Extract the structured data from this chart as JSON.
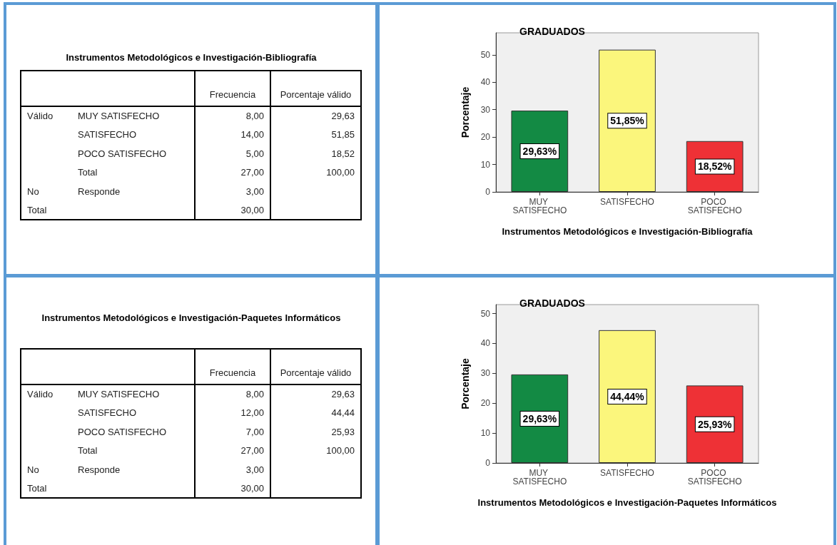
{
  "chart_data": [
    {
      "type": "other",
      "title": "Instrumentos Metodológicos e Investigación-Bibliografía",
      "annotations": [
        null,
        null,
        "Frecuencia",
        "Porcentaje válido",
        "Válido",
        "MUY SATISFECHO",
        "8,00",
        "29,63",
        null,
        "SATISFECHO",
        "14,00",
        "51,85",
        null,
        "POCO SATISFECHO",
        "5,00",
        "18,52",
        null,
        "Total",
        "27,00",
        "100,00",
        "No",
        "Responde",
        "3,00",
        null,
        "Total",
        null,
        "30,00",
        null
      ]
    },
    {
      "type": "bar",
      "title": "GRADUADOS",
      "xlabel": "Instrumentos Metodológicos e Investigación-Bibliografía",
      "ylabel": "Porcentaje",
      "categories": [
        "MUY SATISFECHO",
        "SATISFECHO",
        "POCO SATISFECHO"
      ],
      "values": [
        29.63,
        51.85,
        18.52
      ],
      "colors": [
        "#138a44",
        "#fbf67c",
        "#ee3136"
      ],
      "value_labels": [
        "29,63%",
        "51,85%",
        "18,52%"
      ],
      "ylim": [
        0,
        58
      ],
      "yticks": [
        0,
        10,
        20,
        30,
        40,
        50
      ]
    },
    {
      "type": "other",
      "title": "Instrumentos Metodológicos e Investigación-Paquetes Informáticos",
      "annotations": [
        null,
        null,
        "Frecuencia",
        "Porcentaje válido",
        "Válido",
        "MUY SATISFECHO",
        "8,00",
        "29,63",
        null,
        "SATISFECHO",
        "12,00",
        "44,44",
        null,
        "POCO SATISFECHO",
        "7,00",
        "25,93",
        null,
        "Total",
        "27,00",
        "100,00",
        "No",
        "Responde",
        "3,00",
        null,
        "Total",
        null,
        "30,00",
        null
      ]
    },
    {
      "type": "bar",
      "title": "GRADUADOS",
      "xlabel": "Instrumentos Metodológicos e Investigación-Paquetes Informáticos",
      "ylabel": "Porcentaje",
      "categories": [
        "MUY SATISFECHO",
        "SATISFECHO",
        "POCO SATISFECHO"
      ],
      "values": [
        29.63,
        44.44,
        25.93
      ],
      "colors": [
        "#138a44",
        "#fbf67c",
        "#ee3136"
      ],
      "value_labels": [
        "29,63%",
        "44,44%",
        "25,93%"
      ],
      "ylim": [
        0,
        53
      ],
      "yticks": [
        0,
        10,
        20,
        30,
        40,
        50
      ]
    }
  ]
}
